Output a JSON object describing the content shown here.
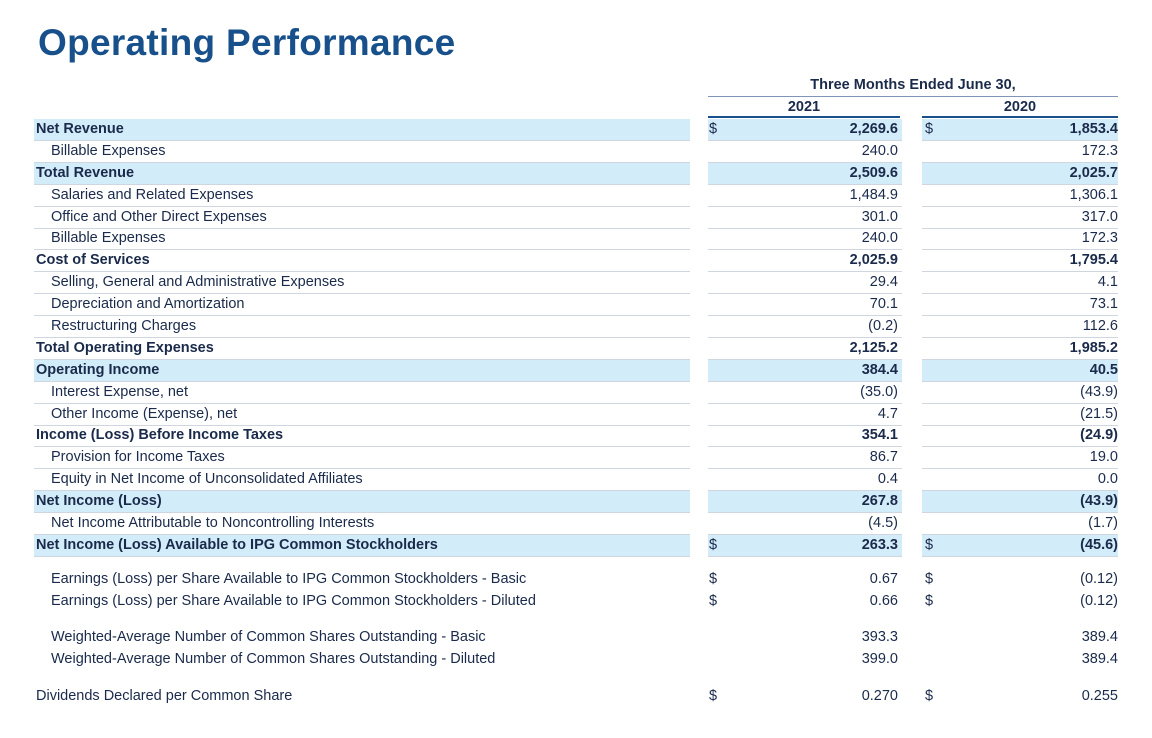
{
  "title": "Operating Performance",
  "period": "Three Months Ended June 30,",
  "years": [
    "2021",
    "2020"
  ],
  "currency": "$",
  "rows": [
    {
      "label": "Net Revenue",
      "y2021": "2,269.6",
      "y2020": "1,853.4",
      "bold": true,
      "highlight": true,
      "currency": true
    },
    {
      "label": "Billable Expenses",
      "y2021": "240.0",
      "y2020": "172.3"
    },
    {
      "label": "Total Revenue",
      "y2021": "2,509.6",
      "y2020": "2,025.7",
      "bold": true,
      "highlight": true
    },
    {
      "label": "Salaries and Related Expenses",
      "y2021": "1,484.9",
      "y2020": "1,306.1"
    },
    {
      "label": "Office and Other Direct Expenses",
      "y2021": "301.0",
      "y2020": "317.0"
    },
    {
      "label": "Billable Expenses",
      "y2021": "240.0",
      "y2020": "172.3"
    },
    {
      "label": "Cost of Services",
      "y2021": "2,025.9",
      "y2020": "1,795.4",
      "bold": true
    },
    {
      "label": "Selling, General and Administrative Expenses",
      "y2021": "29.4",
      "y2020": "4.1"
    },
    {
      "label": "Depreciation and Amortization",
      "y2021": "70.1",
      "y2020": "73.1"
    },
    {
      "label": "Restructuring Charges",
      "y2021": "(0.2)",
      "y2020": "112.6"
    },
    {
      "label": "Total Operating Expenses",
      "y2021": "2,125.2",
      "y2020": "1,985.2",
      "bold": true
    },
    {
      "label": "Operating Income",
      "y2021": "384.4",
      "y2020": "40.5",
      "bold": true,
      "highlight": true
    },
    {
      "label": "Interest Expense, net",
      "y2021": "(35.0)",
      "y2020": "(43.9)"
    },
    {
      "label": "Other Income (Expense), net",
      "y2021": "4.7",
      "y2020": "(21.5)"
    },
    {
      "label": "Income (Loss) Before Income Taxes",
      "y2021": "354.1",
      "y2020": "(24.9)",
      "bold": true
    },
    {
      "label": "Provision for Income Taxes",
      "y2021": "86.7",
      "y2020": "19.0"
    },
    {
      "label": "Equity in Net Income of Unconsolidated Affiliates",
      "y2021": "0.4",
      "y2020": "0.0"
    },
    {
      "label": "Net Income (Loss)",
      "y2021": "267.8",
      "y2020": "(43.9)",
      "bold": true,
      "highlight": true
    },
    {
      "label": "Net Income Attributable to Noncontrolling Interests",
      "y2021": "(4.5)",
      "y2020": "(1.7)"
    },
    {
      "label": "Net Income (Loss) Available to IPG Common Stockholders",
      "y2021": "263.3",
      "y2020": "(45.6)",
      "bold": true,
      "highlight": true,
      "currency": true
    }
  ],
  "eps": [
    {
      "label": "Earnings (Loss) per Share Available to IPG Common Stockholders - Basic",
      "y2021": "0.67",
      "y2020": "(0.12)"
    },
    {
      "label": "Earnings (Loss) per Share Available to IPG Common Stockholders - Diluted",
      "y2021": "0.66",
      "y2020": "(0.12)"
    }
  ],
  "shares": [
    {
      "label": "Weighted-Average Number of Common Shares Outstanding - Basic",
      "y2021": "393.3",
      "y2020": "389.4"
    },
    {
      "label": "Weighted-Average Number of Common Shares Outstanding - Diluted",
      "y2021": "399.0",
      "y2020": "389.4"
    }
  ],
  "dividends": {
    "label": "Dividends Declared per Common Share",
    "y2021": "0.270",
    "y2020": "0.255"
  }
}
